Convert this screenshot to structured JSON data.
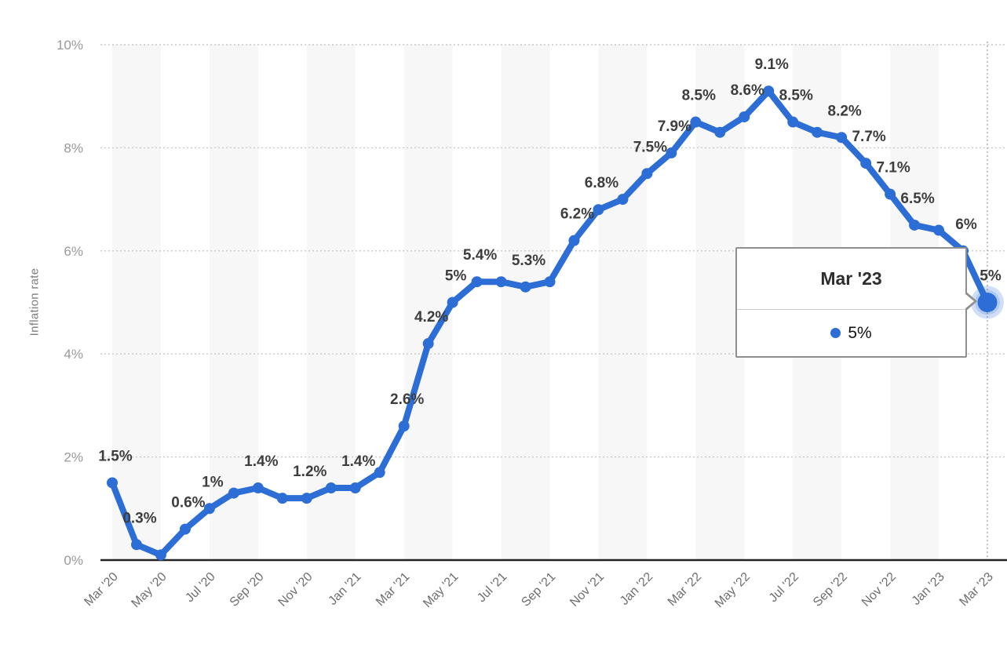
{
  "chart_data": {
    "type": "line",
    "ylabel": "Inflation rate",
    "x": [
      "Mar '20",
      "Apr '20",
      "May '20",
      "Jun '20",
      "Jul '20",
      "Aug '20",
      "Sep '20",
      "Oct '20",
      "Nov '20",
      "Dec '20",
      "Jan '21",
      "Feb '21",
      "Mar '21",
      "Apr '21",
      "May '21",
      "Jun '21",
      "Jul '21",
      "Aug '21",
      "Sep '21",
      "Oct '21",
      "Nov '21",
      "Dec '21",
      "Jan '22",
      "Feb '22",
      "Mar '22",
      "Apr '22",
      "May '22",
      "Jun '22",
      "Jul '22",
      "Aug '22",
      "Sep '22",
      "Oct '22",
      "Nov '22",
      "Dec '22",
      "Jan '23",
      "Feb '23",
      "Mar '23"
    ],
    "values": [
      1.5,
      0.3,
      0.1,
      0.6,
      1.0,
      1.3,
      1.4,
      1.2,
      1.2,
      1.4,
      1.4,
      1.7,
      2.6,
      4.2,
      5.0,
      5.4,
      5.4,
      5.3,
      5.4,
      6.2,
      6.8,
      7.0,
      7.5,
      7.9,
      8.5,
      8.3,
      8.6,
      9.1,
      8.5,
      8.3,
      8.2,
      7.7,
      7.1,
      6.5,
      6.4,
      6.0,
      5.0
    ],
    "point_labels": [
      "1.5%",
      "0.3%",
      null,
      "0.6%",
      "1%",
      null,
      "1.4%",
      null,
      "1.2%",
      null,
      "1.4%",
      null,
      "2.6%",
      "4.2%",
      "5%",
      "5.4%",
      null,
      "5.3%",
      null,
      "6.2%",
      "6.8%",
      null,
      "7.5%",
      "7.9%",
      "8.5%",
      null,
      "8.6%",
      "9.1%",
      "8.5%",
      null,
      "8.2%",
      "7.7%",
      "7.1%",
      "6.5%",
      null,
      "6%",
      "5%"
    ],
    "x_tick_labels": [
      "Mar '20",
      "May '20",
      "Jul '20",
      "Sep '20",
      "Nov '20",
      "Jan '21",
      "Mar '21",
      "May '21",
      "Jul '21",
      "Sep '21",
      "Nov '21",
      "Jan '22",
      "Mar '22",
      "May '22",
      "Jul '22",
      "Sep '22",
      "Nov '22",
      "Jan '23",
      "Mar '23"
    ],
    "y_tick_labels": [
      "0%",
      "2%",
      "4%",
      "6%",
      "8%",
      "10%"
    ],
    "ylim": [
      0,
      10
    ],
    "grid": "horizontal-dotted",
    "legend": "none",
    "active_point_index": 36
  },
  "tooltip": {
    "title": "Mar '23",
    "value": "5%"
  },
  "colors": {
    "line": "#2d6dd6",
    "point_label_text": "#3d3d3d",
    "y_axis_text": "#999999",
    "x_axis_text": "#6e6e6e",
    "stripe": "#f7f7f7",
    "gridline": "#c9c9c9",
    "axis_line": "#222222",
    "crosshair": "#b0b0b0",
    "tooltip_border": "#8f8f8f"
  }
}
